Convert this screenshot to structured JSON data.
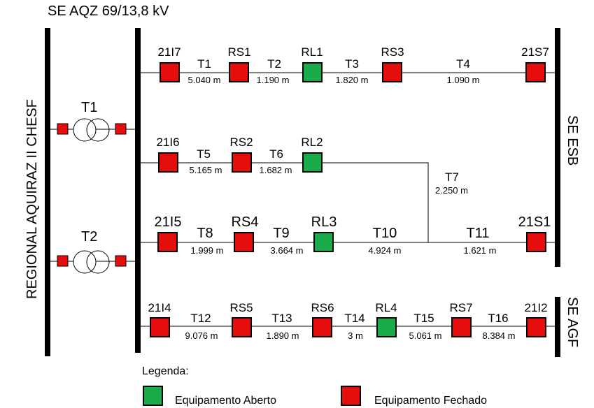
{
  "title": "SE AQZ 69/13,8 kV",
  "colors": {
    "open": "#1aab4a",
    "closed": "#e60d0d"
  },
  "left_bus_label": "REGIONAL AQUIRAZ II CHESF",
  "right_labels": {
    "esb": "SE ESB",
    "agf": "SE AGF"
  },
  "transformers": {
    "t1": "T1",
    "t2": "T2"
  },
  "feeder1": {
    "devices": [
      "21I7",
      "RS1",
      "RL1",
      "RS3",
      "21S7"
    ],
    "states": [
      "closed",
      "closed",
      "open",
      "closed",
      "closed"
    ],
    "segments": [
      "T1",
      "T2",
      "T3",
      "T4"
    ],
    "lengths": [
      "5.040 m",
      "1.190 m",
      "1.820 m",
      "1.090 m"
    ]
  },
  "feeder2": {
    "devices": [
      "21I6",
      "RS2",
      "RL2"
    ],
    "states": [
      "closed",
      "closed",
      "open"
    ],
    "segments": [
      "T5",
      "T6"
    ],
    "lengths": [
      "5.165 m",
      "1.682 m"
    ]
  },
  "tie": {
    "segment": "T7",
    "length": "2.250 m"
  },
  "feeder3": {
    "devices": [
      "21I5",
      "RS4",
      "RL3",
      "21S1"
    ],
    "states": [
      "closed",
      "closed",
      "open",
      "closed"
    ],
    "segments": [
      "T8",
      "T9",
      "T10",
      "T11"
    ],
    "lengths": [
      "1.999 m",
      "3.664 m",
      "4.924 m",
      "1.621 m"
    ]
  },
  "feeder4": {
    "devices": [
      "21I4",
      "RS5",
      "RS6",
      "RL4",
      "RS7",
      "21I2"
    ],
    "states": [
      "closed",
      "closed",
      "closed",
      "open",
      "closed",
      "closed"
    ],
    "segments": [
      "T12",
      "T13",
      "T14",
      "T15",
      "T16"
    ],
    "lengths": [
      "9.076 m",
      "1.890 m",
      "3 m",
      "5.061 m",
      "8.384 m"
    ]
  },
  "legend": {
    "title": "Legenda:",
    "open_label": "Equipamento Aberto",
    "closed_label": "Equipamento Fechado"
  }
}
